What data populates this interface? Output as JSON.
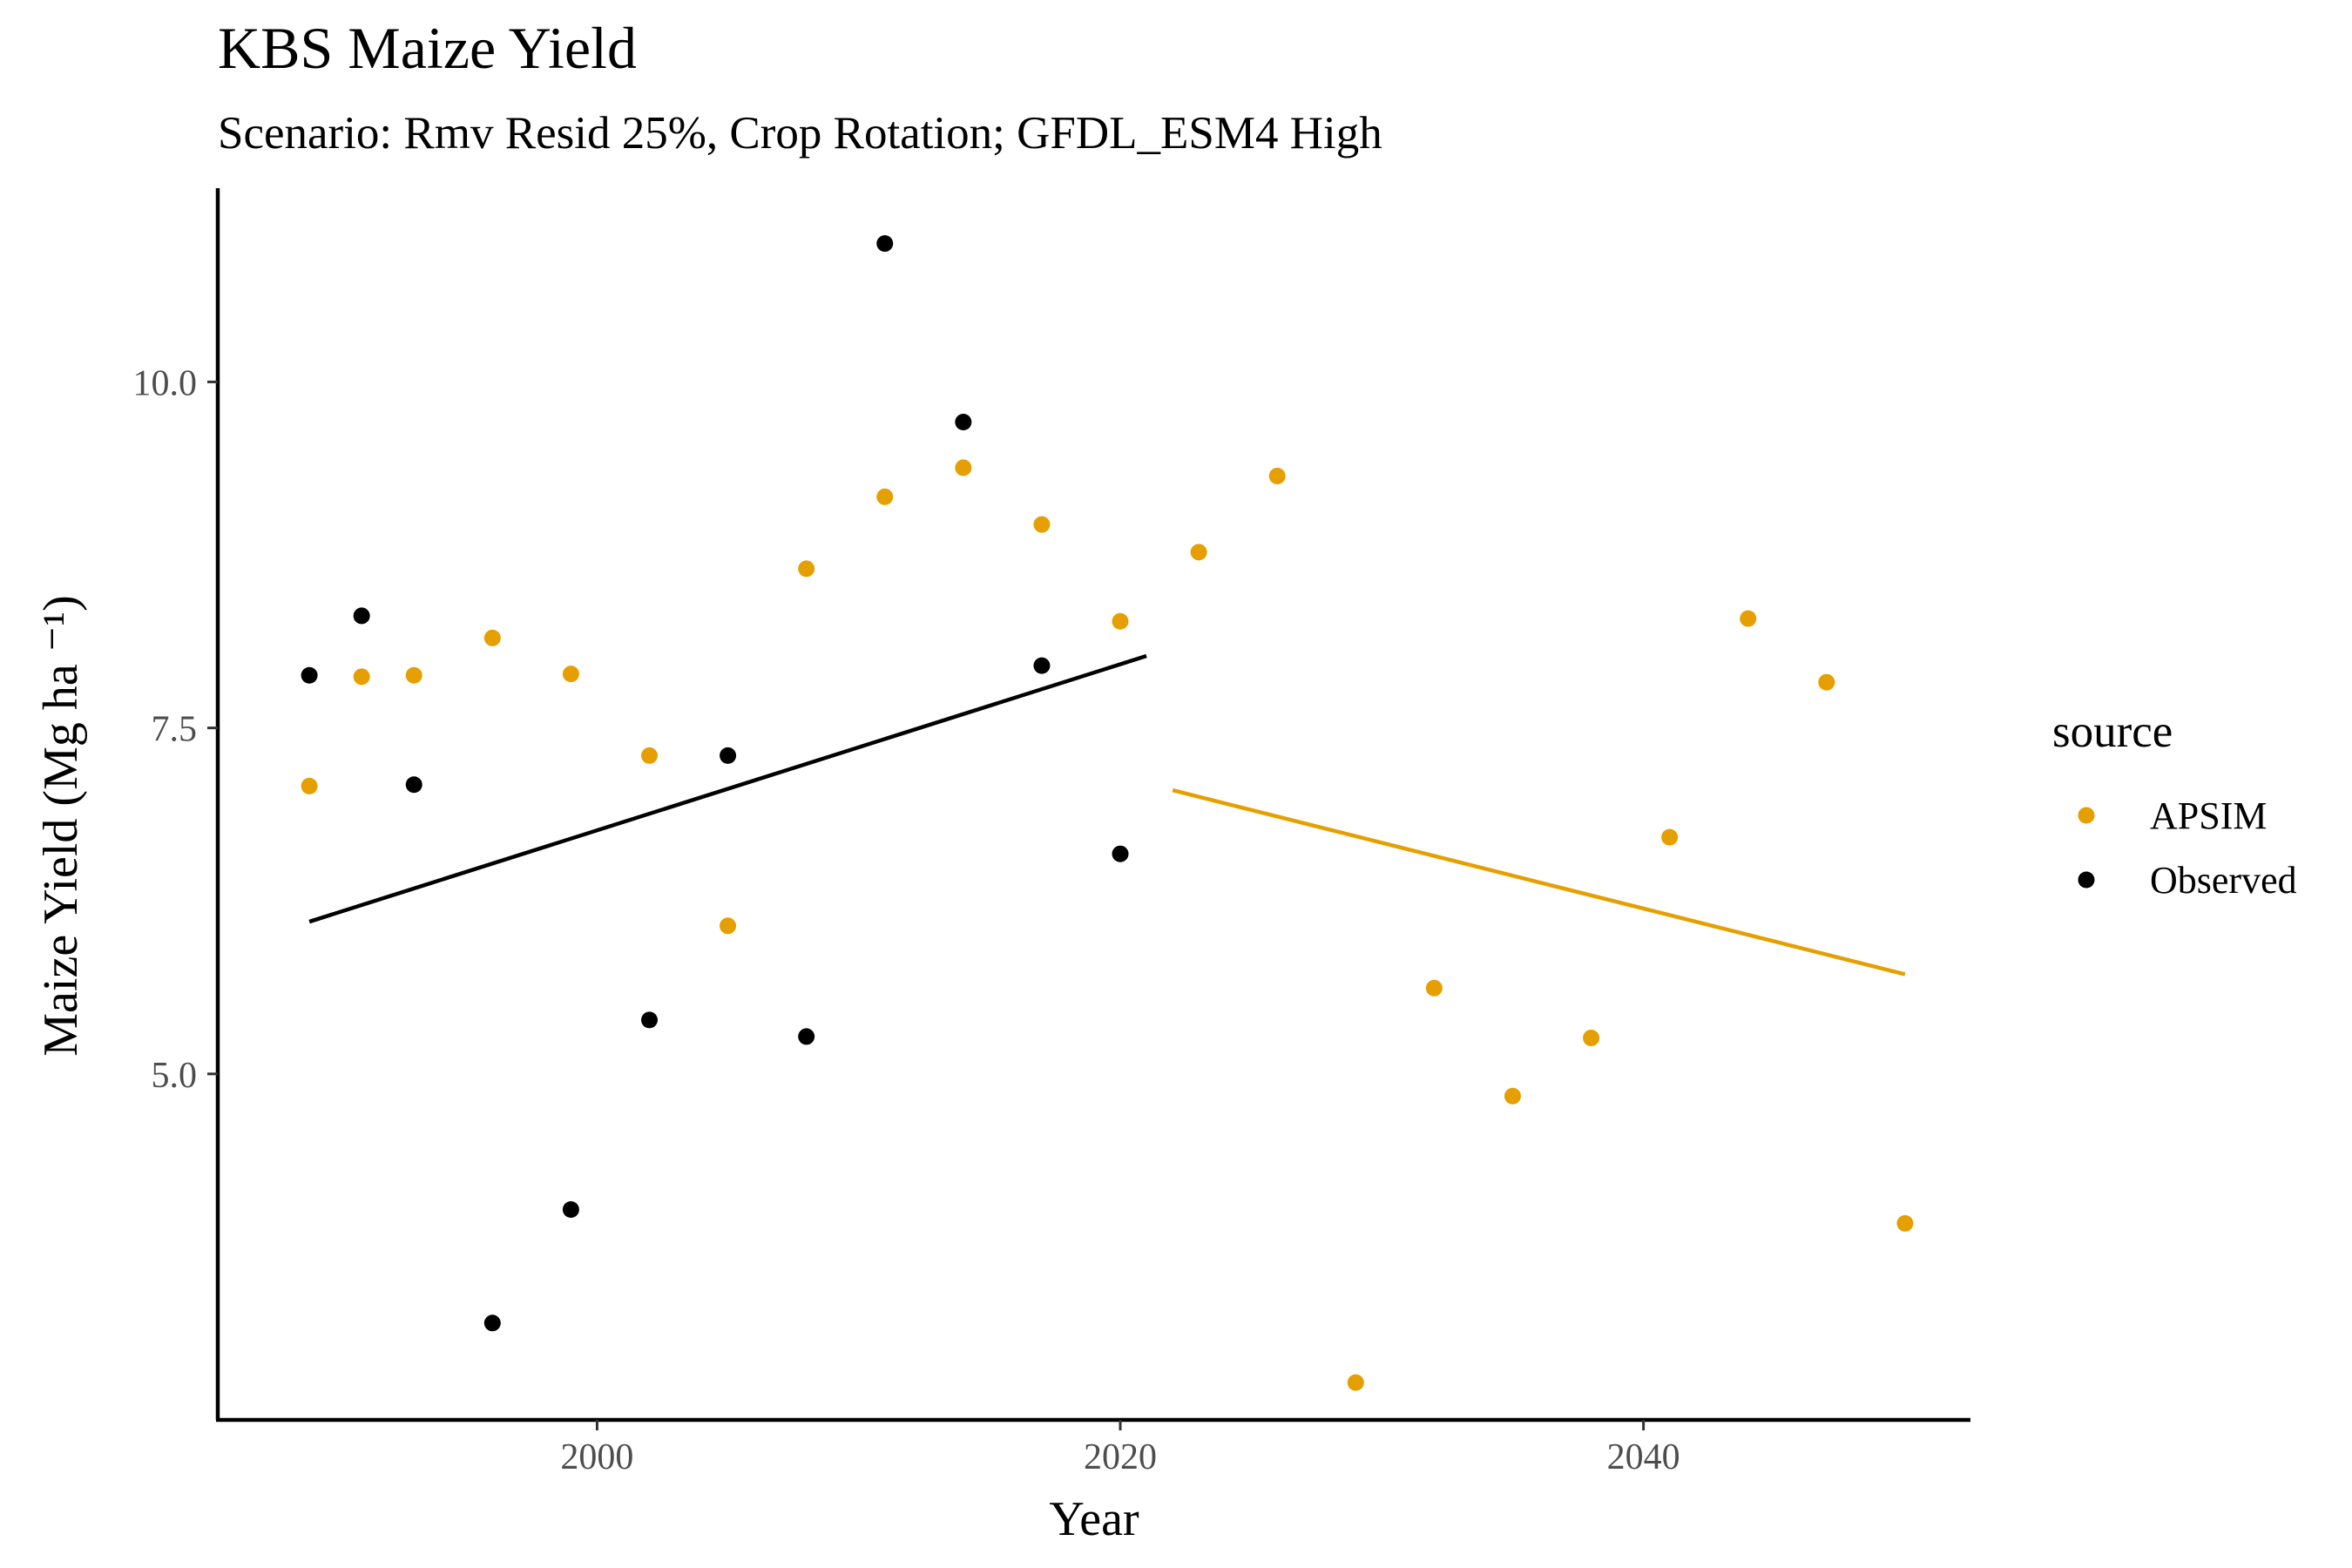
{
  "chart_data": {
    "type": "scatter",
    "title": "KBS Maize Yield",
    "subtitle": "Scenario: Rmv Resid 25%, Crop Rotation; GFDL_ESM4 High",
    "xlabel": "Year",
    "ylabel": "Maize Yield (Mg ha ⁻¹)",
    "xlim": [
      1985.5,
      2052.5
    ],
    "ylim": [
      2.5,
      11.4
    ],
    "x_ticks": [
      2000,
      2020,
      2040
    ],
    "y_ticks": [
      5.0,
      7.5,
      10.0
    ],
    "x_tick_labels": [
      "2000",
      "2020",
      "2040"
    ],
    "y_tick_labels": [
      "5.0",
      "7.5",
      "10.0"
    ],
    "grid": false,
    "legend": {
      "title": "source",
      "position": "right"
    },
    "series": [
      {
        "name": "APSIM",
        "color": "#E69F00",
        "x": [
          1989,
          1991,
          1993,
          1996,
          1999,
          2002,
          2005,
          2008,
          2011,
          2014,
          2017,
          2020,
          2023,
          2026,
          2029,
          2032,
          2035,
          2038,
          2041,
          2044,
          2047,
          2050
        ],
        "y": [
          7.08,
          7.87,
          7.88,
          8.15,
          7.89,
          7.3,
          6.07,
          8.65,
          9.17,
          9.38,
          8.97,
          8.27,
          8.77,
          9.32,
          2.77,
          5.62,
          4.84,
          5.26,
          6.71,
          8.29,
          7.83,
          3.92
        ],
        "trend": {
          "x": [
            2022,
            2050
          ],
          "y": [
            7.05,
            5.72
          ]
        }
      },
      {
        "name": "Observed",
        "color": "#000000",
        "x": [
          1989,
          1991,
          1993,
          1996,
          1999,
          2002,
          2005,
          2008,
          2011,
          2014,
          2017,
          2020
        ],
        "y": [
          7.88,
          8.31,
          7.09,
          3.2,
          4.02,
          5.39,
          7.3,
          5.27,
          11.0,
          9.71,
          7.95,
          6.59
        ],
        "trend": {
          "x": [
            1989,
            2021
          ],
          "y": [
            6.1,
            8.02
          ]
        }
      }
    ]
  }
}
